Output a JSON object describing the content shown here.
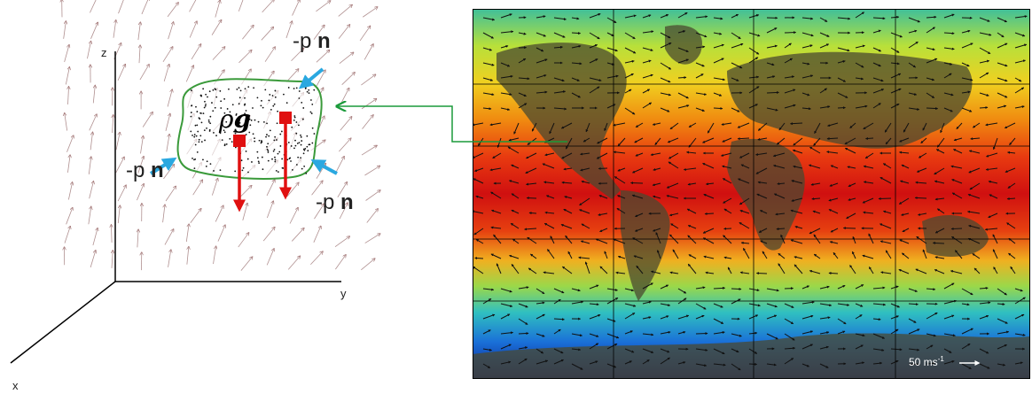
{
  "axes": {
    "x": "x",
    "y": "y",
    "z": "z"
  },
  "parcel": {
    "rho": "ρ",
    "g": "g",
    "pressure_labels": [
      {
        "minus_p": "-p",
        "n": "n"
      },
      {
        "minus_p": "-p",
        "n": "n"
      },
      {
        "minus_p": "-p",
        "n": "n"
      }
    ]
  },
  "map": {
    "scale_label": "50 ms",
    "scale_exponent": "-1"
  }
}
